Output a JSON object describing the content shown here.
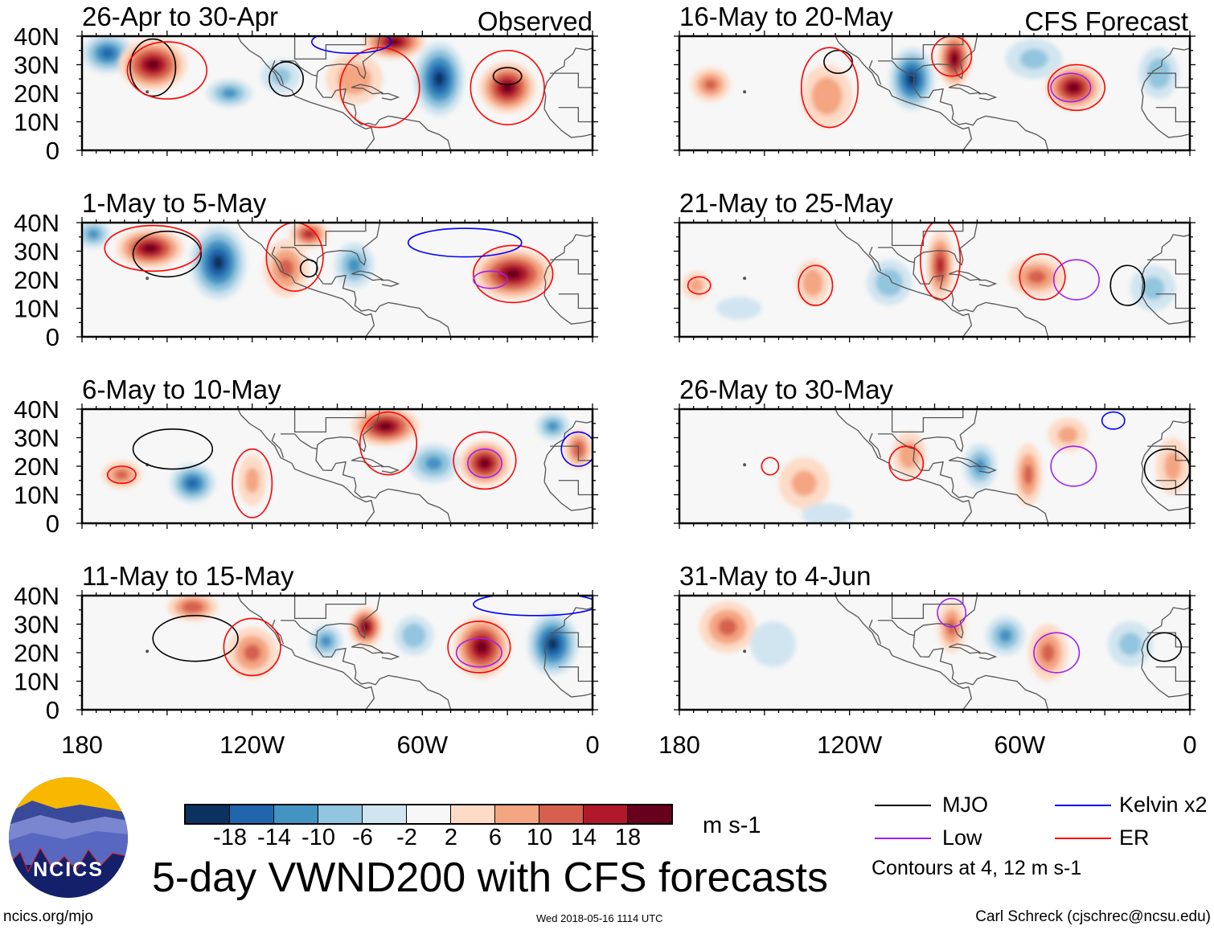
{
  "panels": [
    {
      "title": "26-Apr to 30-Apr",
      "label": "Observed"
    },
    {
      "title": "1-May to 5-May"
    },
    {
      "title": "6-May to 10-May"
    },
    {
      "title": "11-May to 15-May"
    },
    {
      "title": "16-May to 20-May",
      "label": "CFS Forecast"
    },
    {
      "title": "21-May to 25-May"
    },
    {
      "title": "26-May to 30-May"
    },
    {
      "title": "31-May to 4-Jun"
    }
  ],
  "y_ticks": [
    "40N",
    "30N",
    "20N",
    "10N",
    "0"
  ],
  "x_ticks": [
    "180",
    "120W",
    "60W",
    "0"
  ],
  "colorbar": {
    "colors": [
      "#0b3161",
      "#2166ac",
      "#4393c3",
      "#92c5de",
      "#d1e5f0",
      "#f7f7f7",
      "#fddbc7",
      "#f4a582",
      "#d6604d",
      "#b2182b",
      "#67001f"
    ],
    "labels": [
      "-18",
      "-14",
      "-10",
      "-6",
      "-2",
      "2",
      "6",
      "10",
      "14",
      "18"
    ],
    "units": "m s-1"
  },
  "legend": {
    "items": [
      {
        "name": "MJO",
        "color": "#000000"
      },
      {
        "name": "Kelvin x2",
        "color": "#0000ff"
      },
      {
        "name": "Low",
        "color": "#a020f0"
      },
      {
        "name": "ER",
        "color": "#ff0000"
      }
    ],
    "note": "Contours at 4, 12 m s-1"
  },
  "logo": {
    "text": "NCICS"
  },
  "title": "5-day VWND200 with CFS forecasts",
  "footer": {
    "url": "ncics.org/mjo",
    "timestamp": "Wed 2018-05-16 1114 UTC",
    "credit": "Carl Schreck (cjschrec@ncsu.edu)"
  },
  "chart_data": {
    "type": "heatmap",
    "variable": "200-hPa meridional wind anomaly (approximate centers)",
    "units": "m s-1",
    "lon_range": [
      -180,
      0
    ],
    "lat_range": [
      0,
      40
    ],
    "anomalies": [
      [
        {
          "lon": -171,
          "lat": 34,
          "v": -14,
          "rx": 9,
          "ry": 7
        },
        {
          "lon": -155,
          "lat": 30,
          "v": 18,
          "rx": 12,
          "ry": 9
        },
        {
          "lon": -128,
          "lat": 20,
          "v": -10,
          "rx": 8,
          "ry": 5
        },
        {
          "lon": -110,
          "lat": 26,
          "v": -6,
          "rx": 7,
          "ry": 6
        },
        {
          "lon": -84,
          "lat": 25,
          "v": 8,
          "rx": 10,
          "ry": 9
        },
        {
          "lon": -70,
          "lat": 38,
          "v": 18,
          "rx": 11,
          "ry": 6
        },
        {
          "lon": -54,
          "lat": 25,
          "v": -18,
          "rx": 9,
          "ry": 13
        },
        {
          "lon": -30,
          "lat": 22,
          "v": 18,
          "rx": 10,
          "ry": 9
        }
      ],
      [
        {
          "lon": -176,
          "lat": 36,
          "v": -10,
          "rx": 6,
          "ry": 5
        },
        {
          "lon": -156,
          "lat": 31,
          "v": 18,
          "rx": 12,
          "ry": 7
        },
        {
          "lon": -132,
          "lat": 26,
          "v": -18,
          "rx": 10,
          "ry": 13
        },
        {
          "lon": -108,
          "lat": 24,
          "v": 10,
          "rx": 8,
          "ry": 10
        },
        {
          "lon": -100,
          "lat": 36,
          "v": 14,
          "rx": 7,
          "ry": 5
        },
        {
          "lon": -84,
          "lat": 25,
          "v": -10,
          "rx": 7,
          "ry": 8
        },
        {
          "lon": -28,
          "lat": 22,
          "v": 18,
          "rx": 14,
          "ry": 9
        }
      ],
      [
        {
          "lon": -166,
          "lat": 17,
          "v": 10,
          "rx": 7,
          "ry": 5
        },
        {
          "lon": -141,
          "lat": 14,
          "v": -14,
          "rx": 8,
          "ry": 7
        },
        {
          "lon": -120,
          "lat": 15,
          "v": 6,
          "rx": 5,
          "ry": 9
        },
        {
          "lon": -73,
          "lat": 34,
          "v": 18,
          "rx": 12,
          "ry": 7
        },
        {
          "lon": -56,
          "lat": 21,
          "v": -10,
          "rx": 9,
          "ry": 7
        },
        {
          "lon": -38,
          "lat": 21,
          "v": 18,
          "rx": 9,
          "ry": 8
        },
        {
          "lon": -14,
          "lat": 34,
          "v": -10,
          "rx": 6,
          "ry": 5
        },
        {
          "lon": -5,
          "lat": 26,
          "v": 12,
          "rx": 5,
          "ry": 7
        }
      ],
      [
        {
          "lon": -141,
          "lat": 36,
          "v": 12,
          "rx": 9,
          "ry": 5
        },
        {
          "lon": -120,
          "lat": 20,
          "v": 10,
          "rx": 9,
          "ry": 9
        },
        {
          "lon": -94,
          "lat": 24,
          "v": -10,
          "rx": 6,
          "ry": 6
        },
        {
          "lon": -80,
          "lat": 29,
          "v": 18,
          "rx": 6,
          "ry": 7
        },
        {
          "lon": -63,
          "lat": 26,
          "v": -8,
          "rx": 7,
          "ry": 7
        },
        {
          "lon": -39,
          "lat": 22,
          "v": 18,
          "rx": 10,
          "ry": 11
        },
        {
          "lon": -14,
          "lat": 23,
          "v": -18,
          "rx": 9,
          "ry": 11
        }
      ],
      [
        {
          "lon": -169,
          "lat": 23,
          "v": 10,
          "rx": 7,
          "ry": 6
        },
        {
          "lon": -128,
          "lat": 19,
          "v": 8,
          "rx": 9,
          "ry": 11
        },
        {
          "lon": -98,
          "lat": 25,
          "v": -18,
          "rx": 8,
          "ry": 11
        },
        {
          "lon": -83,
          "lat": 32,
          "v": 18,
          "rx": 6,
          "ry": 10
        },
        {
          "lon": -55,
          "lat": 32,
          "v": -6,
          "rx": 10,
          "ry": 7
        },
        {
          "lon": -41,
          "lat": 22,
          "v": 18,
          "rx": 10,
          "ry": 8
        },
        {
          "lon": -11,
          "lat": 27,
          "v": -8,
          "rx": 7,
          "ry": 9
        }
      ],
      [
        {
          "lon": -174,
          "lat": 18,
          "v": 6,
          "rx": 5,
          "ry": 5
        },
        {
          "lon": -159,
          "lat": 10,
          "v": -4,
          "rx": 8,
          "ry": 4
        },
        {
          "lon": -133,
          "lat": 19,
          "v": 8,
          "rx": 6,
          "ry": 8
        },
        {
          "lon": -106,
          "lat": 19,
          "v": -8,
          "rx": 8,
          "ry": 8
        },
        {
          "lon": -88,
          "lat": 25,
          "v": 14,
          "rx": 5,
          "ry": 12
        },
        {
          "lon": -54,
          "lat": 21,
          "v": 10,
          "rx": 10,
          "ry": 7
        },
        {
          "lon": -13,
          "lat": 17,
          "v": -6,
          "rx": 8,
          "ry": 8
        }
      ],
      [
        {
          "lon": -136,
          "lat": 14,
          "v": 6,
          "rx": 9,
          "ry": 9
        },
        {
          "lon": -128,
          "lat": 3,
          "v": -4,
          "rx": 9,
          "ry": 4
        },
        {
          "lon": -99,
          "lat": 24,
          "v": 8,
          "rx": 6,
          "ry": 8
        },
        {
          "lon": -74,
          "lat": 20,
          "v": -10,
          "rx": 6,
          "ry": 8
        },
        {
          "lon": -57,
          "lat": 17,
          "v": 10,
          "rx": 5,
          "ry": 11
        },
        {
          "lon": -43,
          "lat": 31,
          "v": 6,
          "rx": 7,
          "ry": 6
        },
        {
          "lon": -6,
          "lat": 20,
          "v": 6,
          "rx": 6,
          "ry": 10
        }
      ],
      [
        {
          "lon": -163,
          "lat": 29,
          "v": 10,
          "rx": 10,
          "ry": 9
        },
        {
          "lon": -147,
          "lat": 23,
          "v": -4,
          "rx": 8,
          "ry": 8
        },
        {
          "lon": -84,
          "lat": 29,
          "v": 10,
          "rx": 5,
          "ry": 9
        },
        {
          "lon": -65,
          "lat": 26,
          "v": -10,
          "rx": 7,
          "ry": 7
        },
        {
          "lon": -50,
          "lat": 20,
          "v": 10,
          "rx": 7,
          "ry": 10
        },
        {
          "lon": -21,
          "lat": 23,
          "v": -6,
          "rx": 8,
          "ry": 8
        }
      ]
    ],
    "contours": [
      [
        {
          "t": "MJO",
          "lon": -155,
          "lat": 29,
          "rx": 8,
          "ry": 10
        },
        {
          "t": "MJO",
          "lon": -108,
          "lat": 25,
          "rx": 6,
          "ry": 6
        },
        {
          "t": "MJO",
          "lon": -30,
          "lat": 26,
          "rx": 5,
          "ry": 3
        },
        {
          "t": "ER",
          "lon": -150,
          "lat": 28,
          "rx": 14,
          "ry": 10
        },
        {
          "t": "ER",
          "lon": -30,
          "lat": 22,
          "rx": 13,
          "ry": 13
        },
        {
          "t": "ER",
          "lon": -75,
          "lat": 22,
          "rx": 14,
          "ry": 14
        },
        {
          "t": "Kelvin",
          "lon": -85,
          "lat": 38,
          "rx": 14,
          "ry": 4
        }
      ],
      [
        {
          "t": "MJO",
          "lon": -150,
          "lat": 29,
          "rx": 12,
          "ry": 8
        },
        {
          "t": "MJO",
          "lon": -100,
          "lat": 24,
          "rx": 3,
          "ry": 3
        },
        {
          "t": "ER",
          "lon": -155,
          "lat": 31,
          "rx": 17,
          "ry": 8
        },
        {
          "t": "ER",
          "lon": -28,
          "lat": 22,
          "rx": 14,
          "ry": 10
        },
        {
          "t": "ER",
          "lon": -105,
          "lat": 28,
          "rx": 10,
          "ry": 12
        },
        {
          "t": "Kelvin",
          "lon": -45,
          "lat": 33,
          "rx": 20,
          "ry": 5
        },
        {
          "t": "Low",
          "lon": -36,
          "lat": 20,
          "rx": 6,
          "ry": 3
        }
      ],
      [
        {
          "t": "MJO",
          "lon": -148,
          "lat": 26,
          "rx": 14,
          "ry": 7
        },
        {
          "t": "ER",
          "lon": -120,
          "lat": 14,
          "rx": 7,
          "ry": 12
        },
        {
          "t": "ER",
          "lon": -72,
          "lat": 28,
          "rx": 10,
          "ry": 11
        },
        {
          "t": "ER",
          "lon": -38,
          "lat": 22,
          "rx": 11,
          "ry": 10
        },
        {
          "t": "Low",
          "lon": -38,
          "lat": 21,
          "rx": 6,
          "ry": 5
        },
        {
          "t": "ER",
          "lon": -166,
          "lat": 17,
          "rx": 5,
          "ry": 3
        },
        {
          "t": "Kelvin",
          "lon": -5,
          "lat": 26,
          "rx": 6,
          "ry": 6
        }
      ],
      [
        {
          "t": "MJO",
          "lon": -140,
          "lat": 25,
          "rx": 15,
          "ry": 8
        },
        {
          "t": "ER",
          "lon": -120,
          "lat": 22,
          "rx": 10,
          "ry": 10
        },
        {
          "t": "ER",
          "lon": -40,
          "lat": 22,
          "rx": 11,
          "ry": 9
        },
        {
          "t": "Low",
          "lon": -40,
          "lat": 20,
          "rx": 8,
          "ry": 5
        },
        {
          "t": "Kelvin",
          "lon": -20,
          "lat": 37,
          "rx": 22,
          "ry": 4
        }
      ],
      [
        {
          "t": "MJO",
          "lon": -124,
          "lat": 31,
          "rx": 5,
          "ry": 4
        },
        {
          "t": "ER",
          "lon": -127,
          "lat": 22,
          "rx": 10,
          "ry": 14
        },
        {
          "t": "ER",
          "lon": -40,
          "lat": 22,
          "rx": 10,
          "ry": 8
        },
        {
          "t": "Low",
          "lon": -42,
          "lat": 22,
          "rx": 7,
          "ry": 5
        },
        {
          "t": "ER",
          "lon": -84,
          "lat": 33,
          "rx": 7,
          "ry": 7
        }
      ],
      [
        {
          "t": "MJO",
          "lon": -22,
          "lat": 18,
          "rx": 6,
          "ry": 7
        },
        {
          "t": "ER",
          "lon": -132,
          "lat": 18,
          "rx": 6,
          "ry": 7
        },
        {
          "t": "ER",
          "lon": -52,
          "lat": 21,
          "rx": 8,
          "ry": 8
        },
        {
          "t": "Low",
          "lon": -40,
          "lat": 20,
          "rx": 8,
          "ry": 7
        },
        {
          "t": "ER",
          "lon": -173,
          "lat": 18,
          "rx": 4,
          "ry": 3
        },
        {
          "t": "ER",
          "lon": -88,
          "lat": 27,
          "rx": 7,
          "ry": 14
        }
      ],
      [
        {
          "t": "MJO",
          "lon": -8,
          "lat": 19,
          "rx": 8,
          "ry": 7
        },
        {
          "t": "ER",
          "lon": -100,
          "lat": 21,
          "rx": 6,
          "ry": 6
        },
        {
          "t": "ER",
          "lon": -148,
          "lat": 20,
          "rx": 3,
          "ry": 3
        },
        {
          "t": "Low",
          "lon": -41,
          "lat": 20,
          "rx": 8,
          "ry": 7
        },
        {
          "t": "Kelvin",
          "lon": -27,
          "lat": 36,
          "rx": 4,
          "ry": 3
        }
      ],
      [
        {
          "t": "MJO",
          "lon": -9,
          "lat": 22,
          "rx": 6,
          "ry": 5
        },
        {
          "t": "Low",
          "lon": -47,
          "lat": 20,
          "rx": 8,
          "ry": 7
        },
        {
          "t": "Low",
          "lon": -84,
          "lat": 34,
          "rx": 5,
          "ry": 5
        }
      ]
    ]
  }
}
